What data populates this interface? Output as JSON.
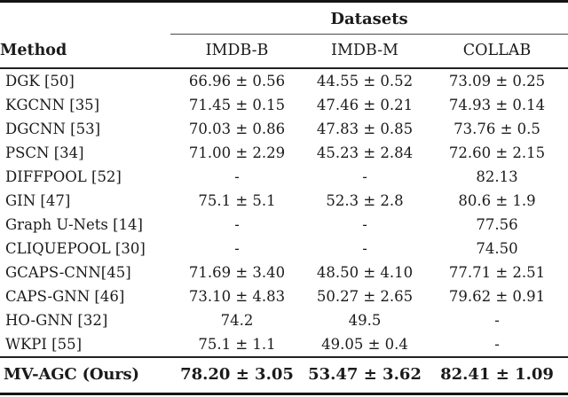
{
  "table": {
    "datasets_header": "Datasets",
    "method_header": "Method",
    "columns": [
      "IMDB-B",
      "IMDB-M",
      "COLLAB"
    ],
    "rows": [
      {
        "method": "DGK [50]",
        "values": [
          "66.96 ± 0.56",
          "44.55 ± 0.52",
          "73.09 ± 0.25"
        ]
      },
      {
        "method": "KGCNN [35]",
        "values": [
          "71.45 ± 0.15",
          "47.46 ± 0.21",
          "74.93 ± 0.14"
        ]
      },
      {
        "method": "DGCNN [53]",
        "values": [
          "70.03 ± 0.86",
          "47.83 ± 0.85",
          "73.76 ± 0.5"
        ]
      },
      {
        "method": "PSCN [34]",
        "values": [
          "71.00 ± 2.29",
          "45.23 ± 2.84",
          "72.60 ± 2.15"
        ]
      },
      {
        "method": "DIFFPOOL [52]",
        "values": [
          "-",
          "-",
          "82.13"
        ]
      },
      {
        "method": "GIN [47]",
        "values": [
          "75.1 ± 5.1",
          "52.3 ± 2.8",
          "80.6 ± 1.9"
        ]
      },
      {
        "method": "Graph U-Nets [14]",
        "values": [
          "-",
          "-",
          "77.56"
        ]
      },
      {
        "method": "CLIQUEPOOL [30]",
        "values": [
          "-",
          "-",
          "74.50"
        ]
      },
      {
        "method": "GCAPS-CNN[45]",
        "values": [
          "71.69 ± 3.40",
          "48.50 ± 4.10",
          "77.71 ± 2.51"
        ]
      },
      {
        "method": "CAPS-GNN [46]",
        "values": [
          "73.10 ± 4.83",
          "50.27 ± 2.65",
          "79.62 ± 0.91"
        ]
      },
      {
        "method": "HO-GNN [32]",
        "values": [
          "74.2",
          "49.5",
          "-"
        ]
      },
      {
        "method": "WKPI [55]",
        "values": [
          "75.1 ± 1.1",
          "49.05 ± 0.4",
          "-"
        ]
      }
    ],
    "final_row": {
      "method": "MV-AGC (Ours)",
      "values": [
        "78.20 ± 3.05",
        "53.47 ± 3.62",
        "82.41 ± 1.09"
      ]
    }
  },
  "chart_data": {
    "type": "table",
    "title": "Datasets",
    "row_header": "Method",
    "categories": [
      "IMDB-B",
      "IMDB-M",
      "COLLAB"
    ],
    "series": [
      {
        "name": "DGK [50]",
        "values": [
          66.96,
          44.55,
          73.09
        ],
        "stddev": [
          0.56,
          0.52,
          0.25
        ]
      },
      {
        "name": "KGCNN [35]",
        "values": [
          71.45,
          47.46,
          74.93
        ],
        "stddev": [
          0.15,
          0.21,
          0.14
        ]
      },
      {
        "name": "DGCNN [53]",
        "values": [
          70.03,
          47.83,
          73.76
        ],
        "stddev": [
          0.86,
          0.85,
          0.5
        ]
      },
      {
        "name": "PSCN [34]",
        "values": [
          71.0,
          45.23,
          72.6
        ],
        "stddev": [
          2.29,
          2.84,
          2.15
        ]
      },
      {
        "name": "DIFFPOOL [52]",
        "values": [
          null,
          null,
          82.13
        ],
        "stddev": [
          null,
          null,
          null
        ]
      },
      {
        "name": "GIN [47]",
        "values": [
          75.1,
          52.3,
          80.6
        ],
        "stddev": [
          5.1,
          2.8,
          1.9
        ]
      },
      {
        "name": "Graph U-Nets [14]",
        "values": [
          null,
          null,
          77.56
        ],
        "stddev": [
          null,
          null,
          null
        ]
      },
      {
        "name": "CLIQUEPOOL [30]",
        "values": [
          null,
          null,
          74.5
        ],
        "stddev": [
          null,
          null,
          null
        ]
      },
      {
        "name": "GCAPS-CNN[45]",
        "values": [
          71.69,
          48.5,
          77.71
        ],
        "stddev": [
          3.4,
          4.1,
          2.51
        ]
      },
      {
        "name": "CAPS-GNN [46]",
        "values": [
          73.1,
          50.27,
          79.62
        ],
        "stddev": [
          4.83,
          2.65,
          0.91
        ]
      },
      {
        "name": "HO-GNN [32]",
        "values": [
          74.2,
          49.5,
          null
        ],
        "stddev": [
          null,
          null,
          null
        ]
      },
      {
        "name": "WKPI [55]",
        "values": [
          75.1,
          49.05,
          null
        ],
        "stddev": [
          1.1,
          0.4,
          null
        ]
      },
      {
        "name": "MV-AGC (Ours)",
        "values": [
          78.2,
          53.47,
          82.41
        ],
        "stddev": [
          3.05,
          3.62,
          1.09
        ]
      }
    ]
  }
}
